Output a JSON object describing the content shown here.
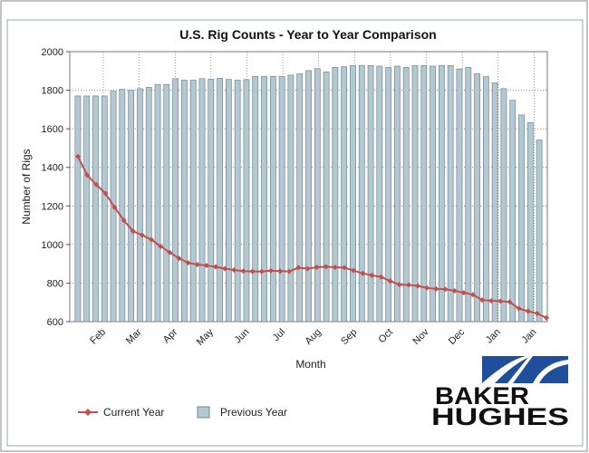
{
  "chart_data": {
    "type": "bar",
    "title": "U.S. Rig Counts - Year to Year Comparison",
    "xlabel": "Month",
    "ylabel": "Number of Rigs",
    "ylim": [
      600,
      2000
    ],
    "yticks": [
      600,
      800,
      1000,
      1200,
      1400,
      1600,
      1800,
      2000
    ],
    "month_labels": [
      "Feb",
      "Mar",
      "Apr",
      "May",
      "Jun",
      "Jul",
      "Aug",
      "Sep",
      "Oct",
      "Nov",
      "Dec",
      "Jan",
      "Jan"
    ],
    "grid": true,
    "legend_position": "bottom-left",
    "series": [
      {
        "name": "Current Year",
        "type": "line",
        "color": "#c0504d",
        "values": [
          1456,
          1360,
          1310,
          1265,
          1192,
          1125,
          1069,
          1048,
          1025,
          990,
          959,
          928,
          905,
          896,
          891,
          884,
          875,
          868,
          862,
          860,
          860,
          864,
          862,
          860,
          880,
          875,
          882,
          885,
          882,
          880,
          865,
          850,
          840,
          832,
          810,
          792,
          790,
          785,
          775,
          770,
          768,
          760,
          750,
          740,
          712,
          708,
          706,
          702,
          668,
          654,
          642,
          620
        ]
      },
      {
        "name": "Previous Year",
        "type": "bar",
        "color": "#b4c8d2",
        "values": [
          1770,
          1770,
          1770,
          1770,
          1795,
          1805,
          1800,
          1808,
          1815,
          1830,
          1830,
          1860,
          1852,
          1852,
          1860,
          1858,
          1862,
          1856,
          1852,
          1855,
          1872,
          1872,
          1872,
          1872,
          1878,
          1885,
          1902,
          1912,
          1895,
          1918,
          1922,
          1928,
          1928,
          1928,
          1925,
          1918,
          1925,
          1918,
          1928,
          1928,
          1925,
          1928,
          1928,
          1910,
          1918,
          1885,
          1870,
          1838,
          1808,
          1748,
          1672,
          1632,
          1542
        ]
      }
    ]
  },
  "legend": {
    "current_label": "Current Year",
    "previous_label": "Previous Year"
  },
  "logo": {
    "line1": "BAKER",
    "line2": "HUGHES",
    "color": "#1f4e9c"
  }
}
